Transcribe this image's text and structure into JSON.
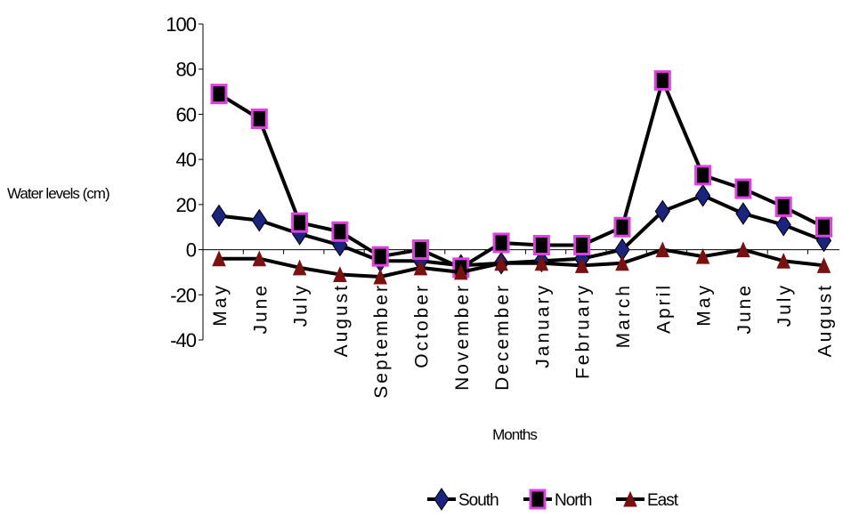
{
  "chart_data": {
    "type": "line",
    "title": "",
    "xlabel": "Months",
    "ylabel": "Water levels (cm)",
    "ylim": [
      -40,
      100
    ],
    "yticks": [
      100,
      80,
      60,
      40,
      20,
      0,
      -20,
      -40
    ],
    "categories": [
      "May",
      "June",
      "July",
      "August",
      "September",
      "October",
      "November",
      "December",
      "January",
      "February",
      "March",
      "April",
      "May",
      "June",
      "July",
      "August"
    ],
    "series": [
      {
        "name": "South",
        "color": "#1a237e",
        "marker": "diamond",
        "values": [
          15,
          13,
          7,
          2,
          -5,
          -5,
          -7,
          -6,
          -5,
          -4,
          0,
          17,
          24,
          16,
          11,
          4
        ]
      },
      {
        "name": "North",
        "color": "#e040e0",
        "marker": "square",
        "values": [
          69,
          58,
          12,
          8,
          -3,
          0,
          -8,
          3,
          2,
          2,
          10,
          75,
          33,
          27,
          19,
          10
        ]
      },
      {
        "name": "East",
        "color": "#7b1010",
        "marker": "triangle",
        "values": [
          -4,
          -4,
          -8,
          -11,
          -12,
          -8,
          -10,
          -6,
          -6,
          -7,
          -6,
          0,
          -3,
          0,
          -5,
          -7
        ]
      }
    ],
    "grid": false,
    "legend_position": "bottom"
  }
}
